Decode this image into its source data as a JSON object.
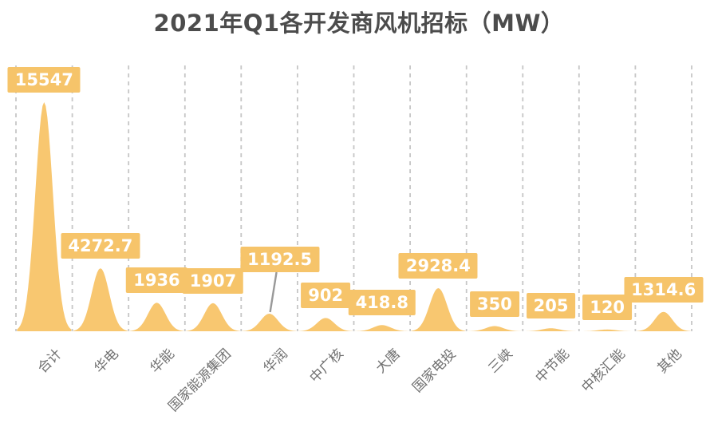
{
  "chart_data": {
    "type": "area",
    "title": "2021年Q1各开发商风机招标（MW）",
    "categories": [
      "合计",
      "华电",
      "华能",
      "国家能源集团",
      "华润",
      "中广核",
      "大唐",
      "国家电投",
      "三峡",
      "中节能",
      "中核汇能",
      "其他"
    ],
    "values": [
      15547,
      4272.7,
      1936,
      1907,
      1192.5,
      902,
      418.8,
      2928.4,
      350,
      205,
      120,
      1314.6
    ],
    "value_labels": [
      "15547",
      "4272.7",
      "1936",
      "1907",
      "1192.5",
      "902",
      "418.8",
      "2928.4",
      "350",
      "205",
      "120",
      "1314.6"
    ],
    "xlabel": "",
    "ylabel": "MW",
    "ylim": [
      0,
      15547
    ],
    "legend": "none",
    "grid": "vertical-dashed",
    "label_position": "above-peak",
    "label_overrides": {
      "4": {
        "dx": 13,
        "dy": -40,
        "leader": true
      }
    },
    "colors": {
      "background": "#FFFFFF",
      "series_fill": "#F8C770",
      "value_label_bg": "#F6C46A",
      "value_label_text": "#FFFFFF",
      "title_text": "#4C4C4C",
      "axis_label_text": "#707070",
      "gridline": "#C6C6C6",
      "leader_line": "#999999"
    }
  }
}
